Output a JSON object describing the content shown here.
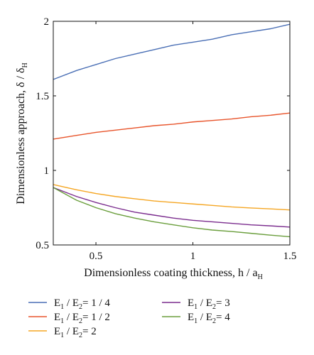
{
  "chart_data": {
    "type": "line",
    "xlabel": {
      "text": "Dimensionless coating thickness, h / a",
      "sub": "H"
    },
    "ylabel": {
      "text": "Dimensionless approach, δ / δ",
      "sub": "H"
    },
    "xlim": [
      0.28,
      1.5
    ],
    "ylim": [
      0.5,
      2.0
    ],
    "xticks": [
      0.5,
      1,
      1.5
    ],
    "xtick_labels": [
      "0.5",
      "1",
      "1.5"
    ],
    "yticks": [
      0.5,
      1,
      1.5,
      2
    ],
    "ytick_labels": [
      "0.5",
      "1",
      "1.5",
      "2"
    ],
    "grid": false,
    "legend_position": "below",
    "x": [
      0.28,
      0.4,
      0.5,
      0.6,
      0.7,
      0.8,
      0.9,
      1.0,
      1.1,
      1.2,
      1.3,
      1.4,
      1.5
    ],
    "series": [
      {
        "name": "E1 / E2= 1 / 4",
        "legend": {
          "a": "E",
          "s1": "1",
          "b": " / E",
          "s2": "2",
          "c": "= 1 / 4"
        },
        "color": "#4a6fb5",
        "values": [
          1.61,
          1.67,
          1.71,
          1.75,
          1.78,
          1.81,
          1.84,
          1.86,
          1.88,
          1.91,
          1.93,
          1.95,
          1.98
        ]
      },
      {
        "name": "E1 / E2= 1 / 2",
        "legend": {
          "a": "E",
          "s1": "1",
          "b": " / E",
          "s2": "2",
          "c": "= 1 / 2"
        },
        "color": "#e8542b",
        "values": [
          1.21,
          1.235,
          1.255,
          1.27,
          1.285,
          1.3,
          1.31,
          1.325,
          1.335,
          1.345,
          1.36,
          1.37,
          1.385
        ]
      },
      {
        "name": "E1 / E2= 2",
        "legend": {
          "a": "E",
          "s1": "1",
          "b": " / E",
          "s2": "2",
          "c": "= 2"
        },
        "color": "#f5a623",
        "values": [
          0.905,
          0.87,
          0.845,
          0.825,
          0.81,
          0.795,
          0.785,
          0.775,
          0.765,
          0.755,
          0.748,
          0.742,
          0.735
        ]
      },
      {
        "name": "E1 / E2= 3",
        "legend": {
          "a": "E",
          "s1": "1",
          "b": " / E",
          "s2": "2",
          "c": "= 3"
        },
        "color": "#7b2d8e",
        "values": [
          0.885,
          0.825,
          0.785,
          0.75,
          0.72,
          0.7,
          0.68,
          0.665,
          0.655,
          0.645,
          0.635,
          0.628,
          0.62
        ]
      },
      {
        "name": "E1 / E2= 4",
        "legend": {
          "a": "E",
          "s1": "1",
          "b": " / E",
          "s2": "2",
          "c": "= 4"
        },
        "color": "#6a9e3c",
        "values": [
          0.885,
          0.8,
          0.75,
          0.71,
          0.68,
          0.655,
          0.635,
          0.615,
          0.6,
          0.59,
          0.578,
          0.566,
          0.555
        ]
      }
    ]
  }
}
